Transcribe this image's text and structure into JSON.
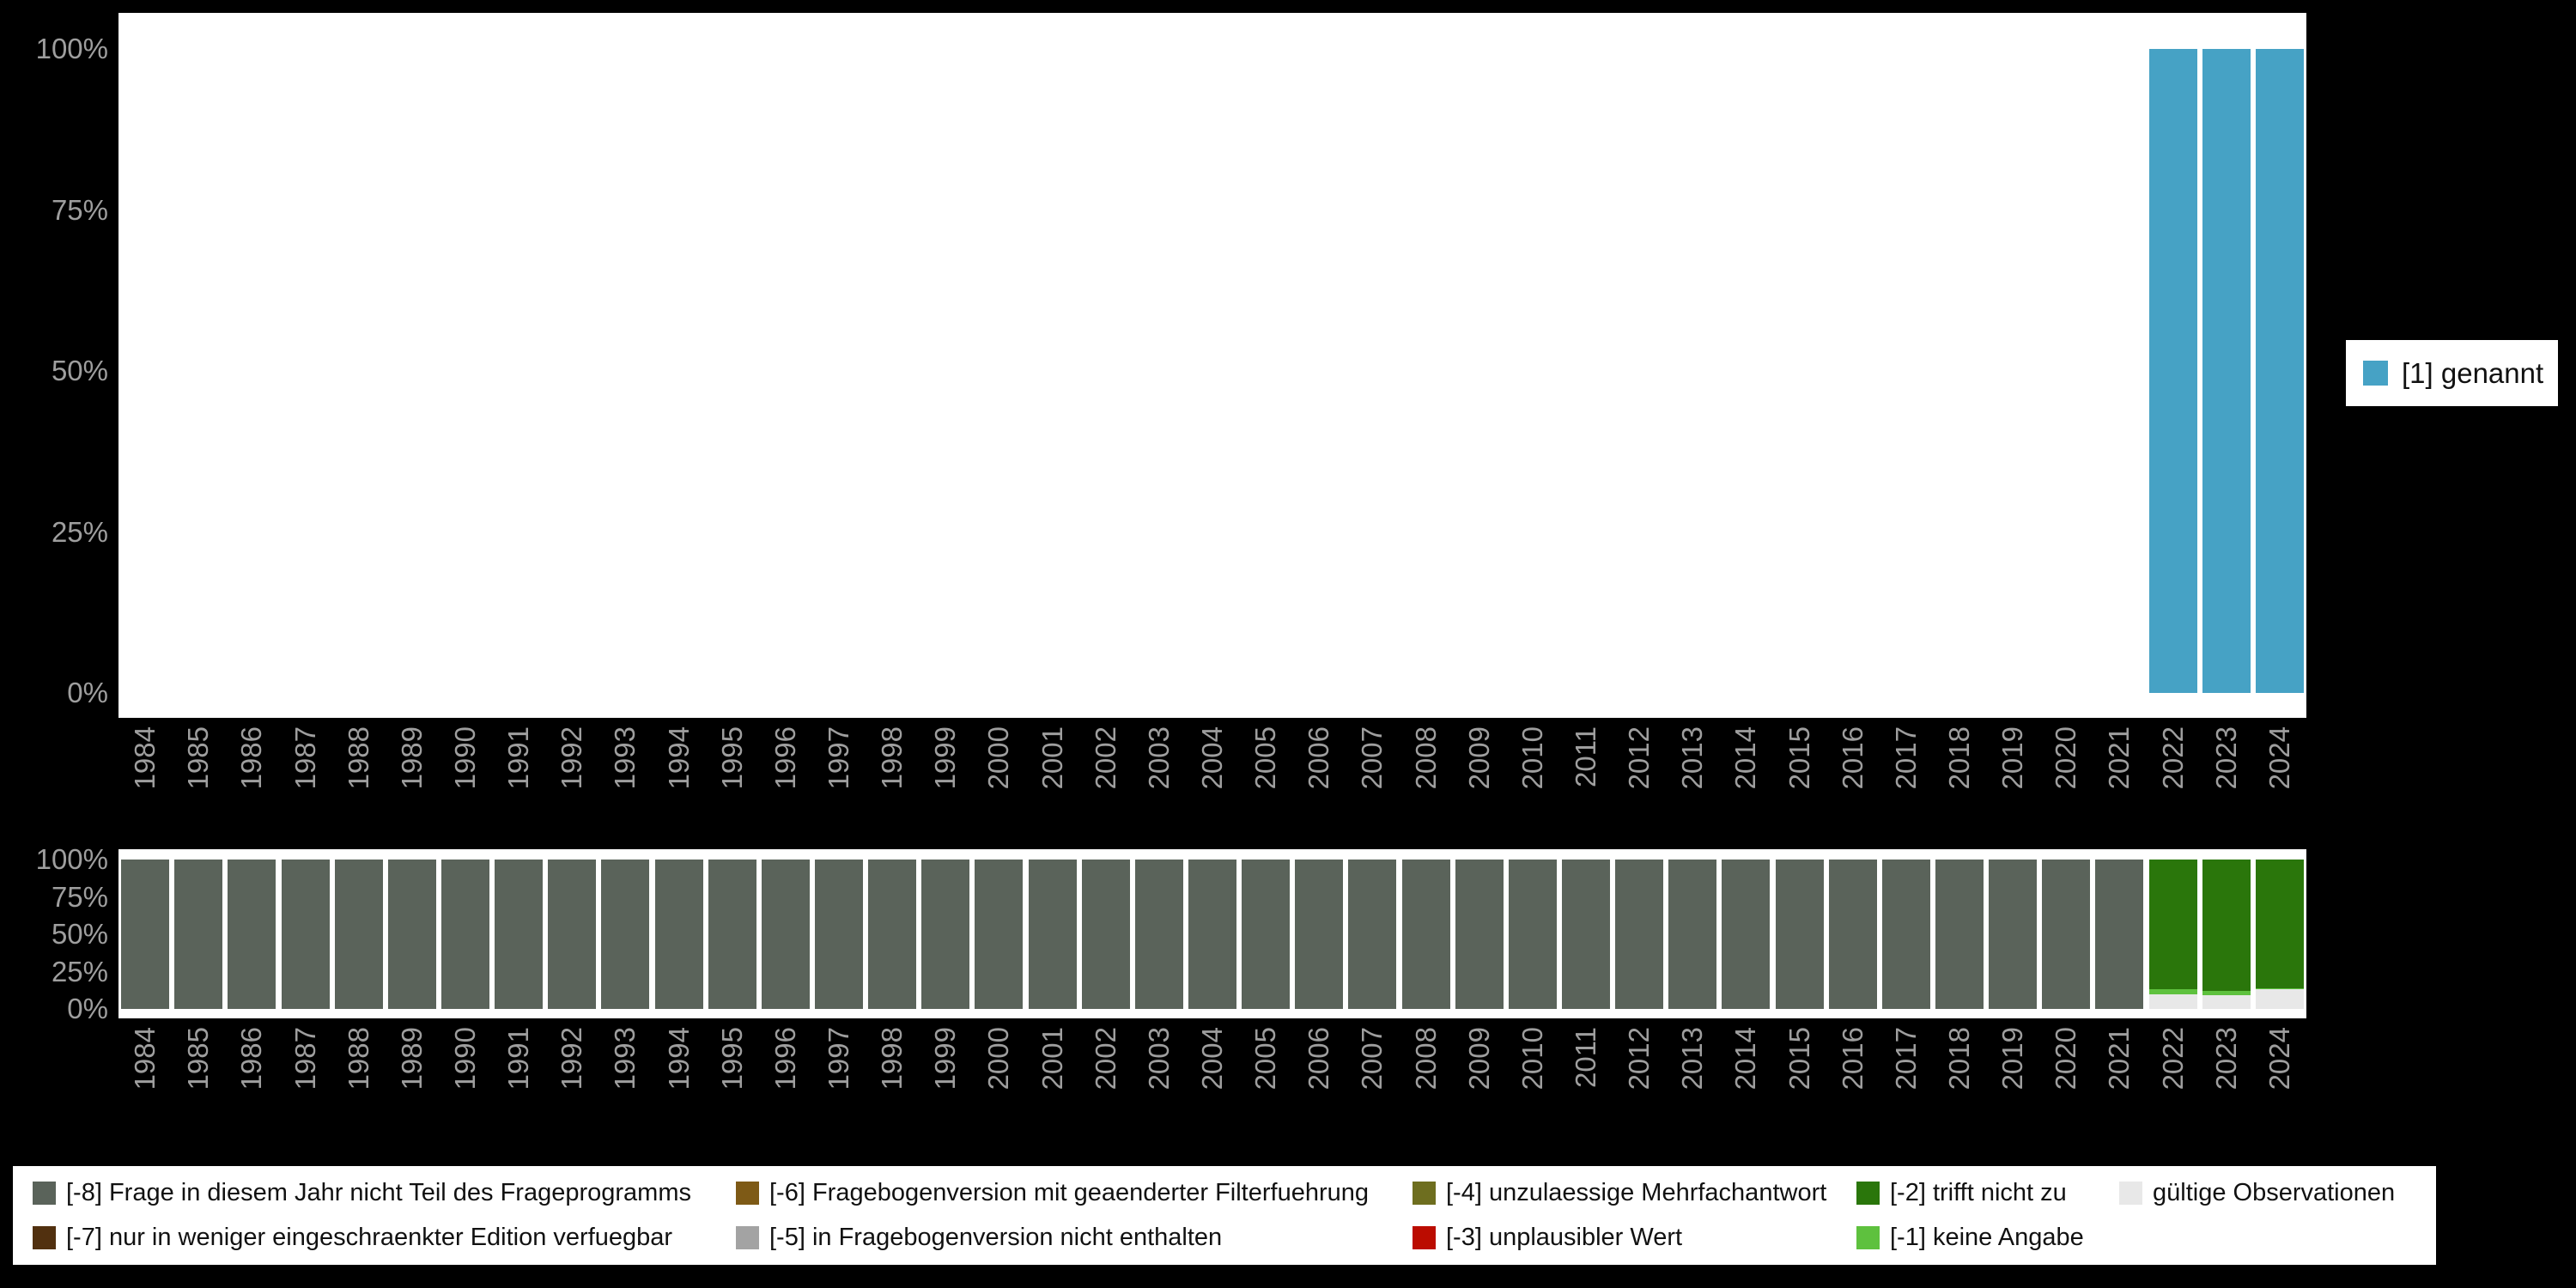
{
  "colors": {
    "background": "#000000",
    "panel": "#ffffff",
    "axis_text": "#9e9e9e",
    "legend_text": "#111111",
    "genannt": "#46a2c5",
    "missing_8": "#5a635a",
    "missing_7": "#51300f",
    "missing_6": "#7e5a16",
    "missing_5": "#a3a3a3",
    "missing_4": "#6e6e1f",
    "missing_3": "#bb0c00",
    "missing_2": "#2a760b",
    "missing_1": "#5ec13e",
    "valid": "#e8e8e8"
  },
  "axis": {
    "y_ticks": [
      "100%",
      "75%",
      "50%",
      "25%",
      "0%"
    ],
    "y_values": [
      100,
      75,
      50,
      25,
      0
    ]
  },
  "chart_data": [
    {
      "type": "bar",
      "stacked": true,
      "percent": true,
      "title": "",
      "xlabel": "",
      "ylabel": "",
      "ylim": [
        0,
        100
      ],
      "legend_position": "right",
      "grid": false,
      "x": [
        "1984",
        "1985",
        "1986",
        "1987",
        "1988",
        "1989",
        "1990",
        "1991",
        "1992",
        "1993",
        "1994",
        "1995",
        "1996",
        "1997",
        "1998",
        "1999",
        "2000",
        "2001",
        "2002",
        "2003",
        "2004",
        "2005",
        "2006",
        "2007",
        "2008",
        "2009",
        "2010",
        "2011",
        "2012",
        "2013",
        "2014",
        "2015",
        "2016",
        "2017",
        "2018",
        "2019",
        "2020",
        "2021",
        "2022",
        "2023",
        "2024"
      ],
      "series": [
        {
          "key": "genannt",
          "name": "[1] genannt",
          "color": "#46a2c5",
          "values": [
            0,
            0,
            0,
            0,
            0,
            0,
            0,
            0,
            0,
            0,
            0,
            0,
            0,
            0,
            0,
            0,
            0,
            0,
            0,
            0,
            0,
            0,
            0,
            0,
            0,
            0,
            0,
            0,
            0,
            0,
            0,
            0,
            0,
            0,
            0,
            0,
            0,
            0,
            100,
            100,
            100
          ]
        }
      ]
    },
    {
      "type": "bar",
      "stacked": true,
      "percent": true,
      "title": "",
      "xlabel": "",
      "ylabel": "",
      "ylim": [
        0,
        100
      ],
      "legend_position": "bottom",
      "grid": false,
      "x": [
        "1984",
        "1985",
        "1986",
        "1987",
        "1988",
        "1989",
        "1990",
        "1991",
        "1992",
        "1993",
        "1994",
        "1995",
        "1996",
        "1997",
        "1998",
        "1999",
        "2000",
        "2001",
        "2002",
        "2003",
        "2004",
        "2005",
        "2006",
        "2007",
        "2008",
        "2009",
        "2010",
        "2011",
        "2012",
        "2013",
        "2014",
        "2015",
        "2016",
        "2017",
        "2018",
        "2019",
        "2020",
        "2021",
        "2022",
        "2023",
        "2024"
      ],
      "series": [
        {
          "key": "valid",
          "name": "gültige Observationen",
          "color": "#e8e8e8",
          "values": [
            0,
            0,
            0,
            0,
            0,
            0,
            0,
            0,
            0,
            0,
            0,
            0,
            0,
            0,
            0,
            0,
            0,
            0,
            0,
            0,
            0,
            0,
            0,
            0,
            0,
            0,
            0,
            0,
            0,
            0,
            0,
            0,
            0,
            0,
            0,
            0,
            0,
            0,
            10,
            9,
            13
          ]
        },
        {
          "key": "m1",
          "name": "[-1] keine Angabe",
          "color": "#5ec13e",
          "values": [
            0,
            0,
            0,
            0,
            0,
            0,
            0,
            0,
            0,
            0,
            0,
            0,
            0,
            0,
            0,
            0,
            0,
            0,
            0,
            0,
            0,
            0,
            0,
            0,
            0,
            0,
            0,
            0,
            0,
            0,
            0,
            0,
            0,
            0,
            0,
            0,
            0,
            0,
            3,
            3,
            1
          ]
        },
        {
          "key": "m2",
          "name": "[-2] trifft nicht zu",
          "color": "#2a760b",
          "values": [
            0,
            0,
            0,
            0,
            0,
            0,
            0,
            0,
            0,
            0,
            0,
            0,
            0,
            0,
            0,
            0,
            0,
            0,
            0,
            0,
            0,
            0,
            0,
            0,
            0,
            0,
            0,
            0,
            0,
            0,
            0,
            0,
            0,
            0,
            0,
            0,
            0,
            0,
            87,
            88,
            86
          ]
        },
        {
          "key": "m8",
          "name": "[-8] Frage in diesem Jahr nicht Teil des Frageprogramms",
          "color": "#5a635a",
          "values": [
            100,
            100,
            100,
            100,
            100,
            100,
            100,
            100,
            100,
            100,
            100,
            100,
            100,
            100,
            100,
            100,
            100,
            100,
            100,
            100,
            100,
            100,
            100,
            100,
            100,
            100,
            100,
            100,
            100,
            100,
            100,
            100,
            100,
            100,
            100,
            100,
            100,
            100,
            0,
            0,
            0
          ]
        }
      ]
    }
  ],
  "legend_top": {
    "items": [
      {
        "key": "genannt",
        "label": "[1] genannt",
        "color": "#46a2c5"
      }
    ]
  },
  "legend_bottom": {
    "items": [
      {
        "key": "m8",
        "label": "[-8] Frage in diesem Jahr nicht Teil des Frageprogramms",
        "color": "#5a635a",
        "col": 0,
        "row": 0
      },
      {
        "key": "m7",
        "label": "[-7] nur in weniger eingeschraenkter Edition verfuegbar",
        "color": "#51300f",
        "col": 0,
        "row": 1
      },
      {
        "key": "m6",
        "label": "[-6] Fragebogenversion mit geaenderter Filterfuehrung",
        "color": "#7e5a16",
        "col": 1,
        "row": 0
      },
      {
        "key": "m5",
        "label": "[-5] in Fragebogenversion nicht enthalten",
        "color": "#a3a3a3",
        "col": 1,
        "row": 1
      },
      {
        "key": "m4",
        "label": "[-4] unzulaessige Mehrfachantwort",
        "color": "#6e6e1f",
        "col": 2,
        "row": 0
      },
      {
        "key": "m3",
        "label": "[-3] unplausibler Wert",
        "color": "#bb0c00",
        "col": 2,
        "row": 1
      },
      {
        "key": "m2",
        "label": "[-2] trifft nicht zu",
        "color": "#2a760b",
        "col": 3,
        "row": 0
      },
      {
        "key": "m1",
        "label": "[-1] keine Angabe",
        "color": "#5ec13e",
        "col": 3,
        "row": 1
      },
      {
        "key": "valid",
        "label": "gültige Observationen",
        "color": "#e8e8e8",
        "col": 4,
        "row": 0
      }
    ]
  }
}
